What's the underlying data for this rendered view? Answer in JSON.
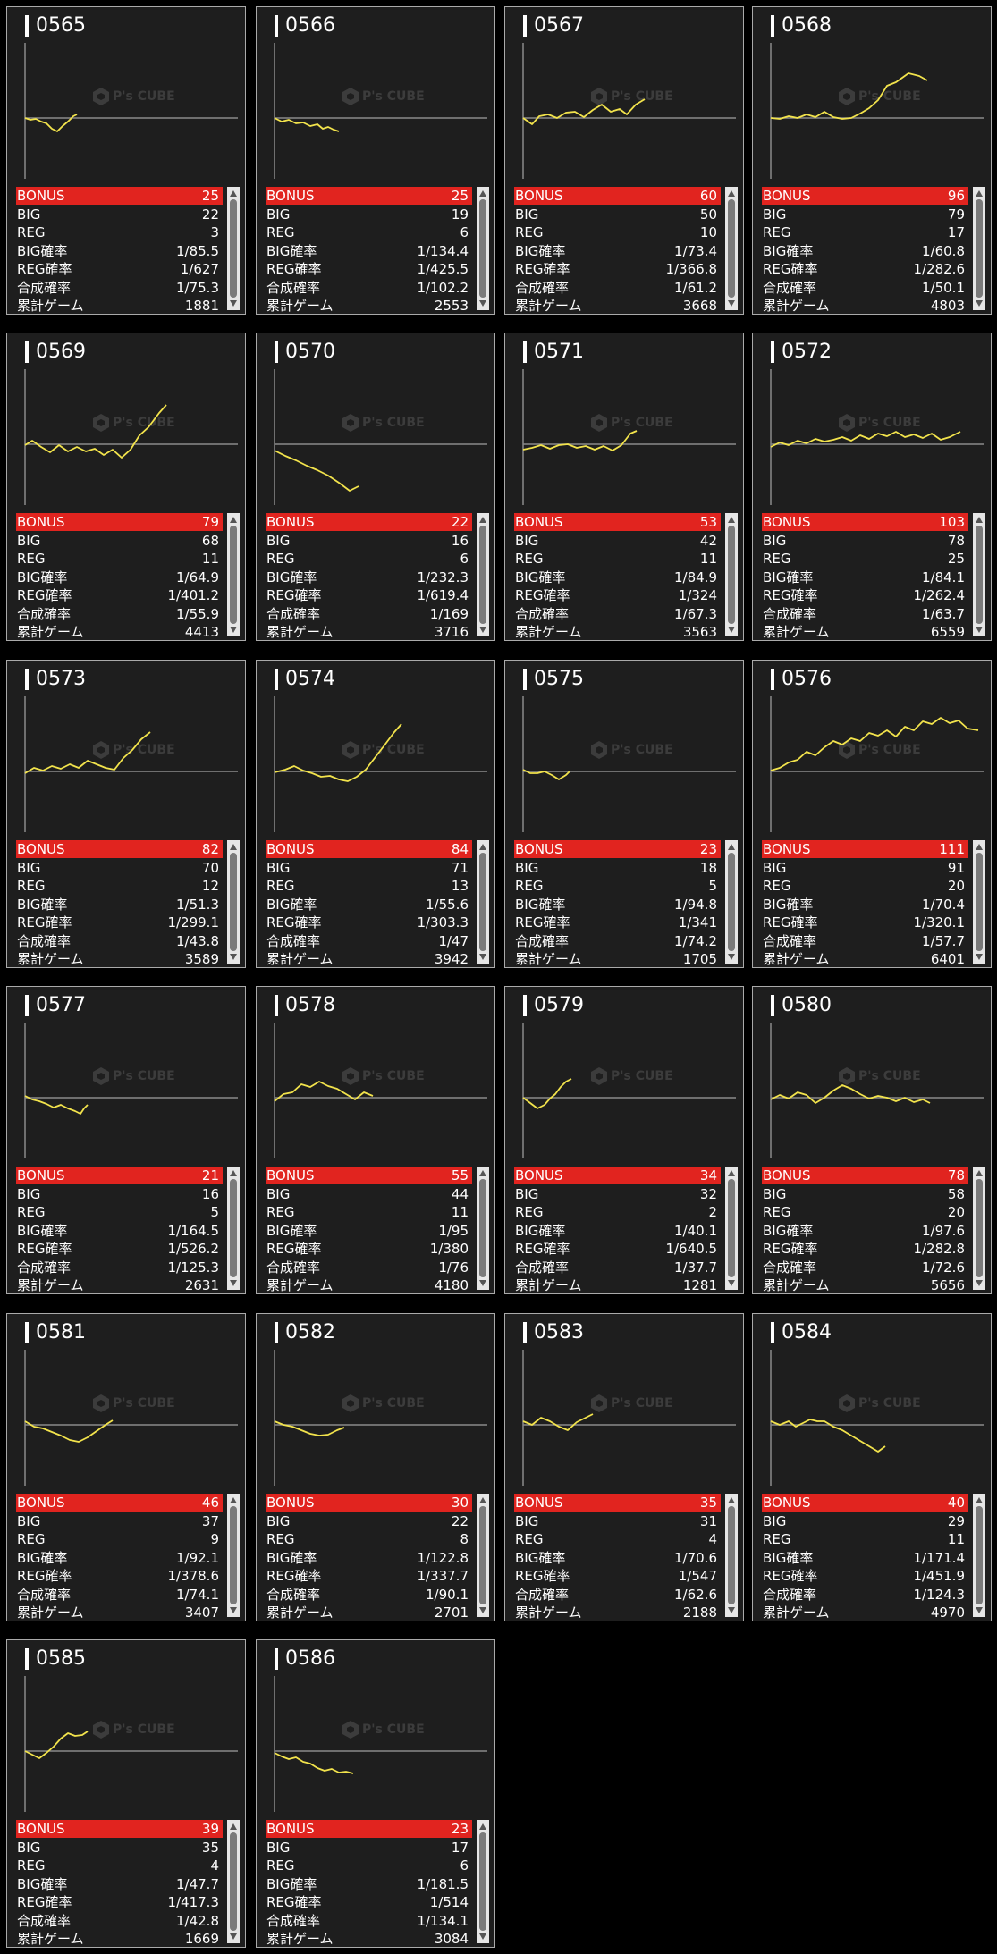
{
  "labels": {
    "bonus": "BONUS",
    "big": "BIG",
    "reg": "REG",
    "big_rate": "BIG確率",
    "reg_rate": "REG確率",
    "total_rate": "合成確率",
    "total_games": "累計ゲーム"
  },
  "watermark": "P's CUBE",
  "colors": {
    "background": "#000000",
    "card": "#1e1e1e",
    "card_border": "#aaaaaa",
    "bonus_row": "#e1241f",
    "line": "#f2e34c",
    "axis": "#8a8a8a"
  },
  "machines": [
    {
      "id": "0565",
      "bonus": "25",
      "big": "22",
      "reg": "3",
      "big_rate": "1/85.5",
      "reg_rate": "1/627",
      "total_rate": "1/75.3",
      "games": "1881"
    },
    {
      "id": "0566",
      "bonus": "25",
      "big": "19",
      "reg": "6",
      "big_rate": "1/134.4",
      "reg_rate": "1/425.5",
      "total_rate": "1/102.2",
      "games": "2553"
    },
    {
      "id": "0567",
      "bonus": "60",
      "big": "50",
      "reg": "10",
      "big_rate": "1/73.4",
      "reg_rate": "1/366.8",
      "total_rate": "1/61.2",
      "games": "3668"
    },
    {
      "id": "0568",
      "bonus": "96",
      "big": "79",
      "reg": "17",
      "big_rate": "1/60.8",
      "reg_rate": "1/282.6",
      "total_rate": "1/50.1",
      "games": "4803"
    },
    {
      "id": "0569",
      "bonus": "79",
      "big": "68",
      "reg": "11",
      "big_rate": "1/64.9",
      "reg_rate": "1/401.2",
      "total_rate": "1/55.9",
      "games": "4413"
    },
    {
      "id": "0570",
      "bonus": "22",
      "big": "16",
      "reg": "6",
      "big_rate": "1/232.3",
      "reg_rate": "1/619.4",
      "total_rate": "1/169",
      "games": "3716"
    },
    {
      "id": "0571",
      "bonus": "53",
      "big": "42",
      "reg": "11",
      "big_rate": "1/84.9",
      "reg_rate": "1/324",
      "total_rate": "1/67.3",
      "games": "3563"
    },
    {
      "id": "0572",
      "bonus": "103",
      "big": "78",
      "reg": "25",
      "big_rate": "1/84.1",
      "reg_rate": "1/262.4",
      "total_rate": "1/63.7",
      "games": "6559"
    },
    {
      "id": "0573",
      "bonus": "82",
      "big": "70",
      "reg": "12",
      "big_rate": "1/51.3",
      "reg_rate": "1/299.1",
      "total_rate": "1/43.8",
      "games": "3589"
    },
    {
      "id": "0574",
      "bonus": "84",
      "big": "71",
      "reg": "13",
      "big_rate": "1/55.6",
      "reg_rate": "1/303.3",
      "total_rate": "1/47",
      "games": "3942"
    },
    {
      "id": "0575",
      "bonus": "23",
      "big": "18",
      "reg": "5",
      "big_rate": "1/94.8",
      "reg_rate": "1/341",
      "total_rate": "1/74.2",
      "games": "1705"
    },
    {
      "id": "0576",
      "bonus": "111",
      "big": "91",
      "reg": "20",
      "big_rate": "1/70.4",
      "reg_rate": "1/320.1",
      "total_rate": "1/57.7",
      "games": "6401"
    },
    {
      "id": "0577",
      "bonus": "21",
      "big": "16",
      "reg": "5",
      "big_rate": "1/164.5",
      "reg_rate": "1/526.2",
      "total_rate": "1/125.3",
      "games": "2631"
    },
    {
      "id": "0578",
      "bonus": "55",
      "big": "44",
      "reg": "11",
      "big_rate": "1/95",
      "reg_rate": "1/380",
      "total_rate": "1/76",
      "games": "4180"
    },
    {
      "id": "0579",
      "bonus": "34",
      "big": "32",
      "reg": "2",
      "big_rate": "1/40.1",
      "reg_rate": "1/640.5",
      "total_rate": "1/37.7",
      "games": "1281"
    },
    {
      "id": "0580",
      "bonus": "78",
      "big": "58",
      "reg": "20",
      "big_rate": "1/97.6",
      "reg_rate": "1/282.8",
      "total_rate": "1/72.6",
      "games": "5656"
    },
    {
      "id": "0581",
      "bonus": "46",
      "big": "37",
      "reg": "9",
      "big_rate": "1/92.1",
      "reg_rate": "1/378.6",
      "total_rate": "1/74.1",
      "games": "3407"
    },
    {
      "id": "0582",
      "bonus": "30",
      "big": "22",
      "reg": "8",
      "big_rate": "1/122.8",
      "reg_rate": "1/337.7",
      "total_rate": "1/90.1",
      "games": "2701"
    },
    {
      "id": "0583",
      "bonus": "35",
      "big": "31",
      "reg": "4",
      "big_rate": "1/70.6",
      "reg_rate": "1/547",
      "total_rate": "1/62.6",
      "games": "2188"
    },
    {
      "id": "0584",
      "bonus": "40",
      "big": "29",
      "reg": "11",
      "big_rate": "1/171.4",
      "reg_rate": "1/451.9",
      "total_rate": "1/124.3",
      "games": "4970"
    },
    {
      "id": "0585",
      "bonus": "39",
      "big": "35",
      "reg": "4",
      "big_rate": "1/47.7",
      "reg_rate": "1/417.3",
      "total_rate": "1/42.8",
      "games": "1669"
    },
    {
      "id": "0586",
      "bonus": "23",
      "big": "17",
      "reg": "6",
      "big_rate": "1/181.5",
      "reg_rate": "1/514",
      "total_rate": "1/134.1",
      "games": "3084"
    }
  ]
}
